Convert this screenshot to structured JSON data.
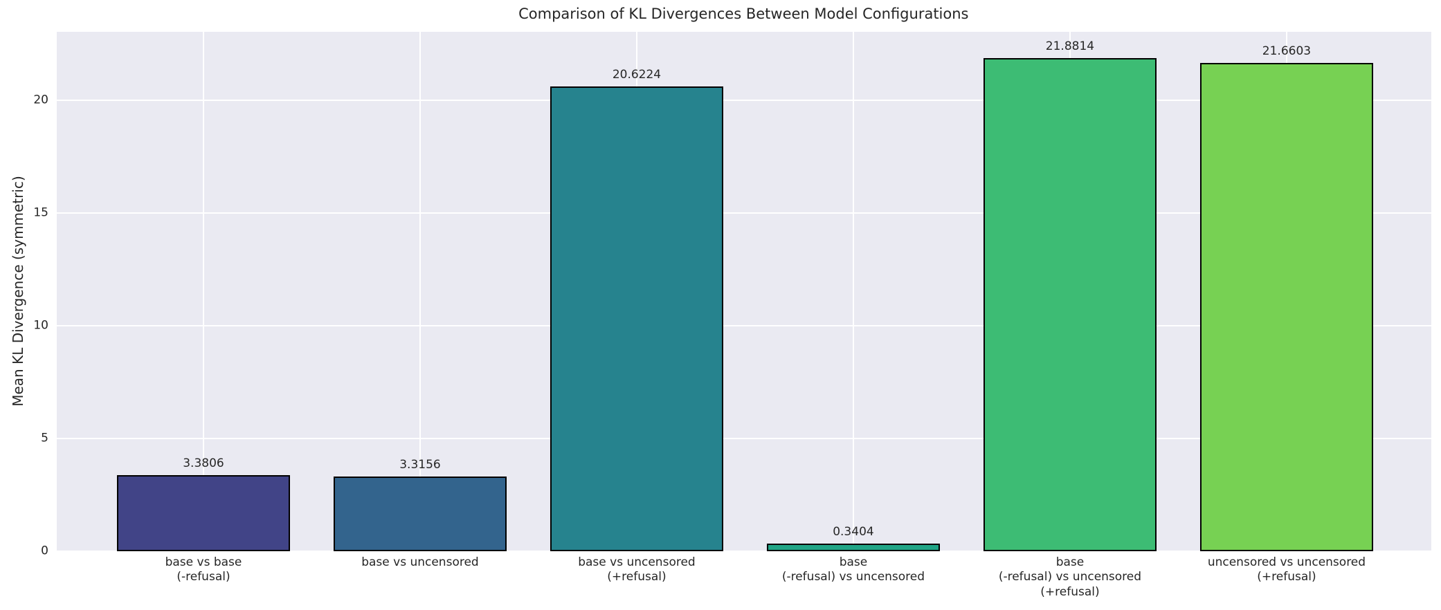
{
  "chart_data": {
    "type": "bar",
    "title": "Comparison of KL Divergences Between Model Configurations",
    "ylabel": "Mean KL Divergence (symmetric)",
    "xlabel": "",
    "categories": [
      "base vs base\n(-refusal)",
      "base vs uncensored",
      "base vs uncensored\n(+refusal)",
      "base\n(-refusal) vs uncensored",
      "base\n(-refusal) vs uncensored\n(+refusal)",
      "uncensored vs uncensored\n(+refusal)"
    ],
    "values": [
      3.3806,
      3.3156,
      20.6224,
      0.3404,
      21.8814,
      21.6603
    ],
    "value_labels": [
      "3.3806",
      "3.3156",
      "20.6224",
      "0.3404",
      "21.8814",
      "21.6603"
    ],
    "bar_colors": [
      "#414487",
      "#33648d",
      "#26838e",
      "#20a486",
      "#3dbc74",
      "#77d153"
    ],
    "bar_edge_color": "#000000",
    "yticks": [
      0,
      5,
      10,
      15,
      20
    ],
    "ylim": [
      0,
      23.05
    ],
    "grid": true,
    "legend_position": "none",
    "plot_background": "#eaeaf2",
    "figure_background": "#ffffff",
    "grid_color": "#ffffff",
    "text_color": "#262626"
  }
}
